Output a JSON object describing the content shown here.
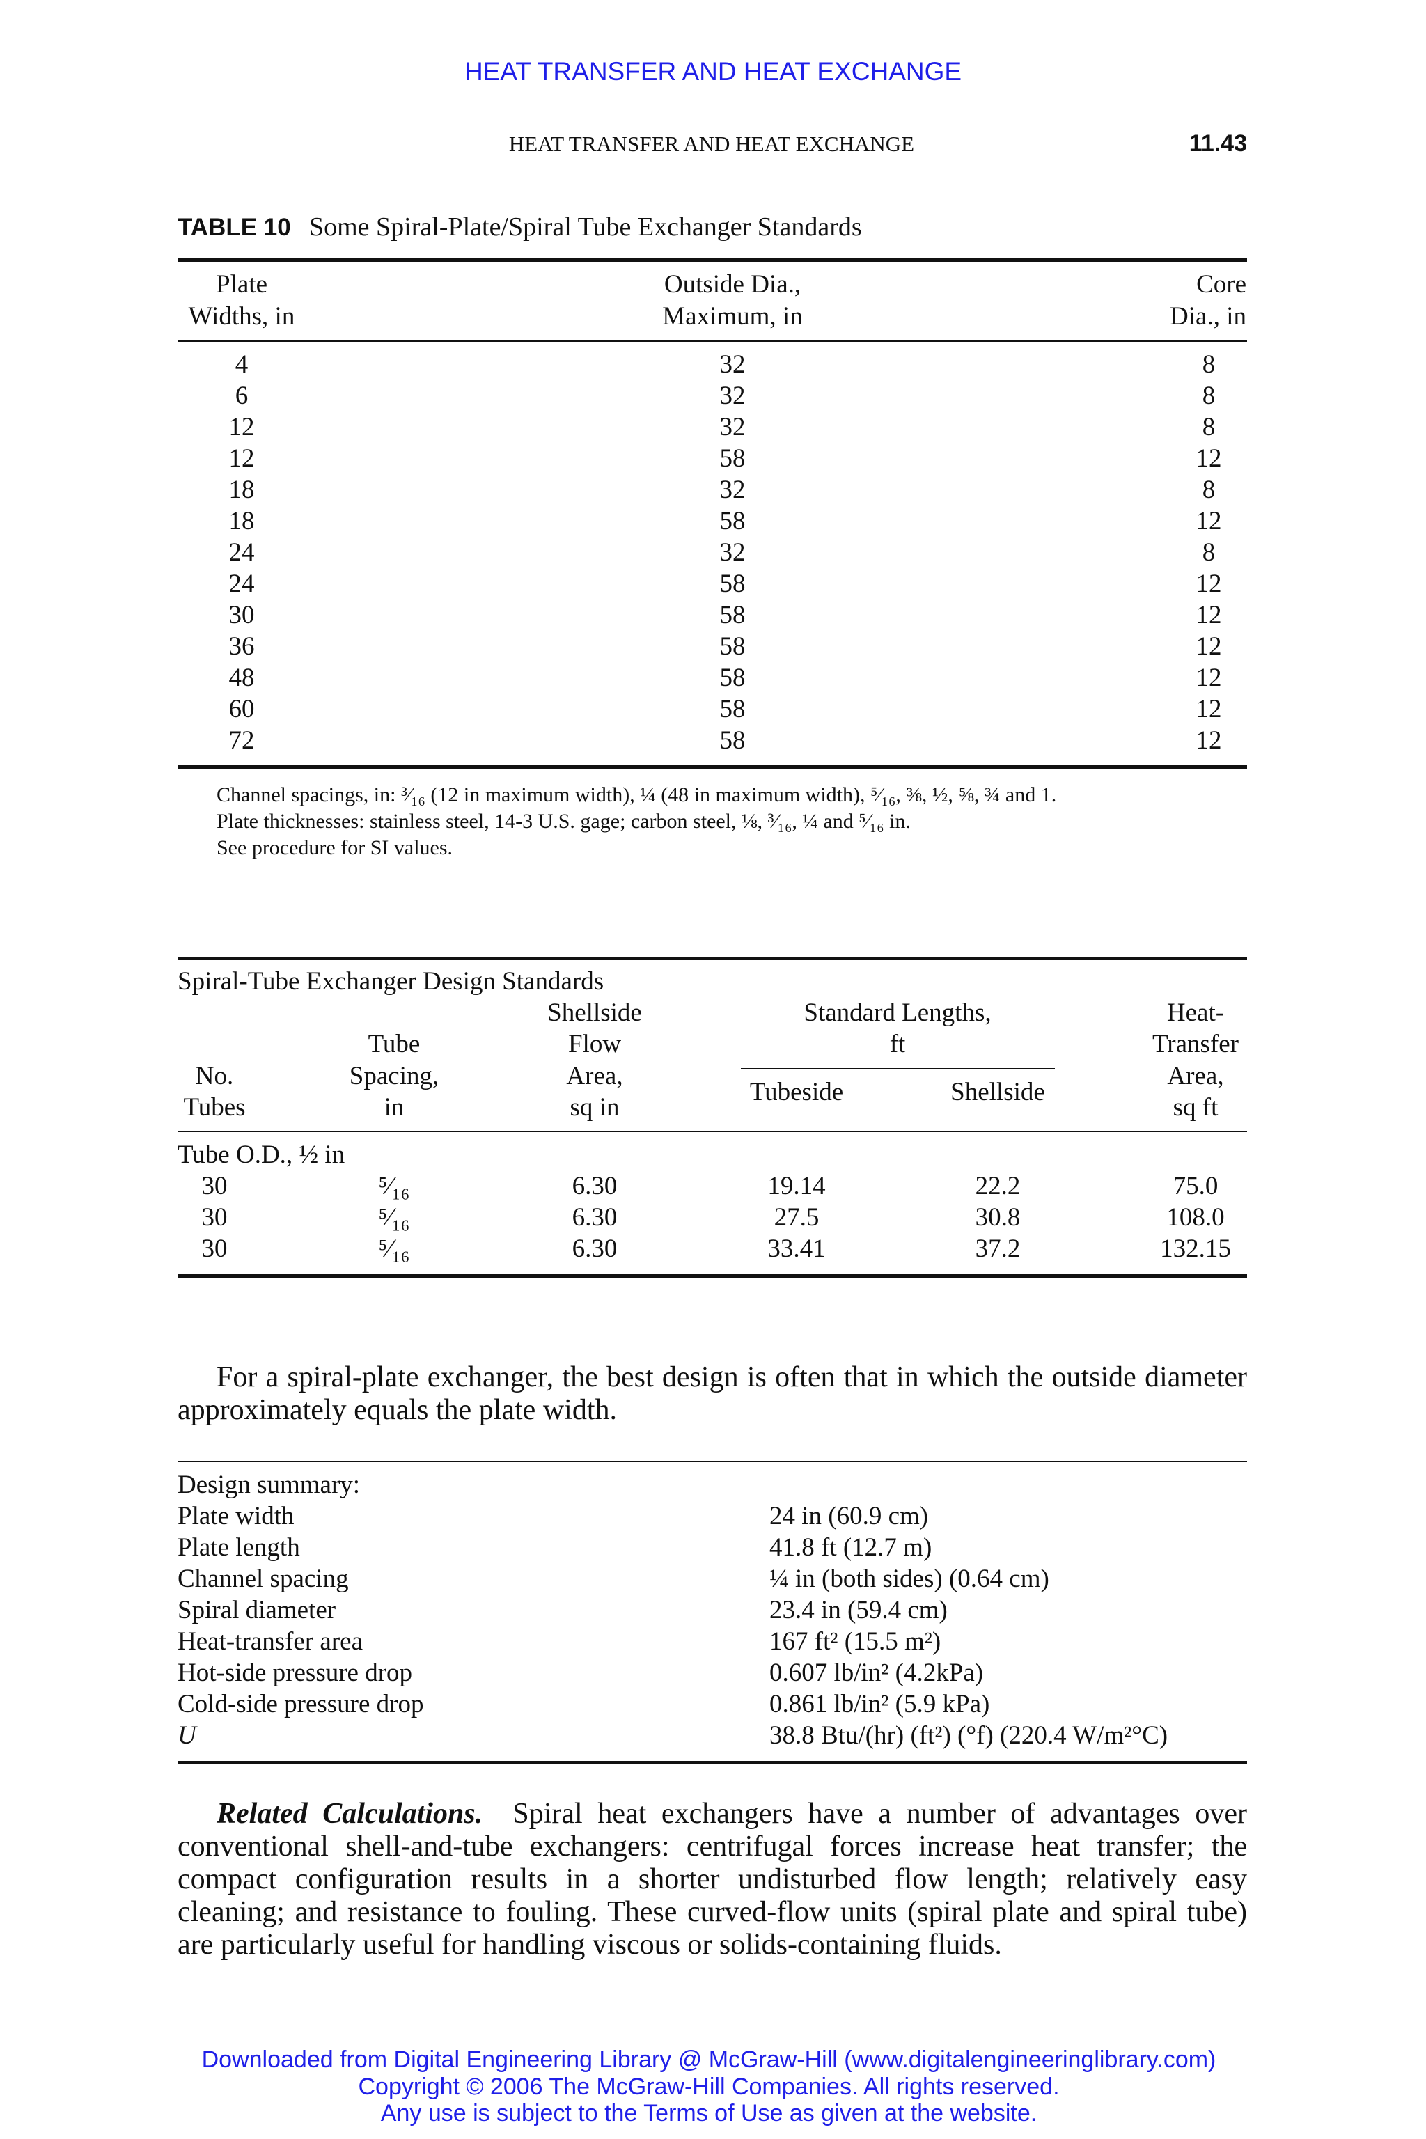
{
  "header": {
    "banner": "HEAT TRANSFER AND HEAT EXCHANGE",
    "running_head": "HEAT TRANSFER AND HEAT EXCHANGE",
    "page_number": "11.43"
  },
  "table10": {
    "label": "TABLE 10",
    "title": "Some Spiral-Plate/Spiral Tube Exchanger Standards",
    "headers": [
      [
        "Plate",
        "Widths, in"
      ],
      [
        "Outside Dia.,",
        "Maximum, in"
      ],
      [
        "Core",
        "Dia., in"
      ]
    ],
    "rows": [
      [
        "4",
        "32",
        "8"
      ],
      [
        "6",
        "32",
        "8"
      ],
      [
        "12",
        "32",
        "8"
      ],
      [
        "12",
        "58",
        "12"
      ],
      [
        "18",
        "32",
        "8"
      ],
      [
        "18",
        "58",
        "12"
      ],
      [
        "24",
        "32",
        "8"
      ],
      [
        "24",
        "58",
        "12"
      ],
      [
        "30",
        "58",
        "12"
      ],
      [
        "36",
        "58",
        "12"
      ],
      [
        "48",
        "58",
        "12"
      ],
      [
        "60",
        "58",
        "12"
      ],
      [
        "72",
        "58",
        "12"
      ]
    ],
    "notes": [
      "Channel spacings, in: ³⁄₁₆ (12 in maximum width), ¼ (48 in maximum width), ⁵⁄₁₆, ⅜, ½, ⅝, ¾ and 1.",
      "Plate thicknesses: stainless steel, 14-3 U.S. gage; carbon steel, ⅛, ³⁄₁₆, ¼ and ⁵⁄₁₆ in.",
      "See procedure for SI values."
    ]
  },
  "spiral_tube": {
    "title": "Spiral-Tube Exchanger Design Standards",
    "headers": {
      "no_tubes": [
        "No.",
        "Tubes"
      ],
      "tube_spacing": [
        "Tube",
        "Spacing,",
        "in"
      ],
      "flow_area": [
        "Shellside",
        "Flow",
        "Area,",
        "sq in"
      ],
      "std_lengths": [
        "Standard Lengths,",
        "ft"
      ],
      "tubeside": "Tubeside",
      "shellside": "Shellside",
      "heat_area": [
        "Heat-",
        "Transfer",
        "Area,",
        "sq ft"
      ]
    },
    "group_label": "Tube O.D., ½ in",
    "rows": [
      [
        "30",
        "⁵⁄₁₆",
        "6.30",
        "19.14",
        "22.2",
        "75.0"
      ],
      [
        "30",
        "⁵⁄₁₆",
        "6.30",
        "27.5",
        "30.8",
        "108.0"
      ],
      [
        "30",
        "⁵⁄₁₆",
        "6.30",
        "33.41",
        "37.2",
        "132.15"
      ]
    ]
  },
  "paragraph1": "For a spiral-plate exchanger, the best design is often that in which the outside diameter approximately equals the plate width.",
  "design_summary": {
    "title": "Design summary:",
    "rows": [
      [
        "Plate width",
        "24 in (60.9 cm)"
      ],
      [
        "Plate length",
        "41.8 ft (12.7 m)"
      ],
      [
        "Channel spacing",
        "¼ in (both sides) (0.64 cm)"
      ],
      [
        "Spiral diameter",
        "23.4 in (59.4 cm)"
      ],
      [
        "Heat-transfer area",
        "167 ft² (15.5 m²)"
      ],
      [
        "Hot-side pressure drop",
        "0.607 lb/in² (4.2kPa)"
      ],
      [
        "Cold-side pressure drop",
        "0.861 lb/in² (5.9 kPa)"
      ],
      [
        "U",
        "38.8 Btu/(hr) (ft²) (°f) (220.4 W/m²°C)"
      ]
    ]
  },
  "related": {
    "heading": "Related Calculations.",
    "text": "Spiral heat exchangers have a number of advantages over conventional shell-and-tube exchangers: centrifugal forces increase heat transfer; the compact configuration results in a shorter undisturbed flow length; relatively easy cleaning; and resistance to fouling. These curved-flow units (spiral plate and spiral tube) are particularly useful for handling viscous or solids-containing fluids."
  },
  "footer": [
    "Downloaded from Digital Engineering Library @ McGraw-Hill (www.digitalengineeringlibrary.com)",
    "Copyright © 2006 The McGraw-Hill Companies. All rights reserved.",
    "Any use is subject to the Terms of Use as given at the website."
  ],
  "colors": {
    "link_blue": "#1f1fe8",
    "text": "#111111"
  }
}
